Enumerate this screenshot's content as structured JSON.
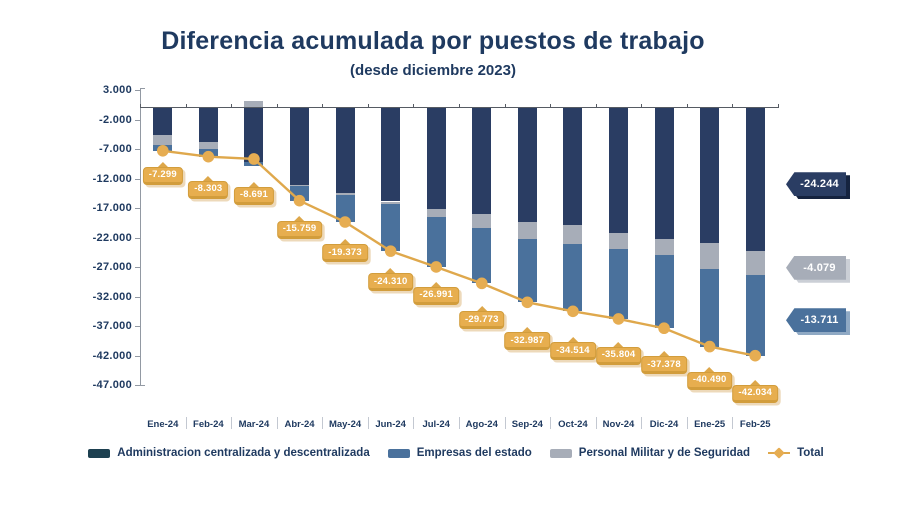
{
  "title": "Diferencia acumulada por puestos de trabajo",
  "subtitle": "(desde diciembre 2023)",
  "colors": {
    "title": "#1f3a60",
    "text": "#1f3a60",
    "axis": "#9299a3",
    "zero_line": "#565b63",
    "admin": "#2a3d63",
    "empresas": "#4a719c",
    "militar": "#a7adb8",
    "gold_line": "#dfa84c",
    "gold_fill": "#e6ad52",
    "gold_border": "#d29d3c",
    "legend_admin_swatch": "#1d4050",
    "callout_shadow_admin": "#15233f",
    "callout_shadow_militar": "#cbcfd6",
    "callout_shadow_empresas": "#8fa9c4"
  },
  "y_axis": {
    "tick_labels": [
      "3.000",
      "-2.000",
      "-7.000",
      "-12.000",
      "-17.000",
      "-22.000",
      "-27.000",
      "-32.000",
      "-37.000",
      "-42.000",
      "-47.000"
    ],
    "max": 3000,
    "min": -47000
  },
  "chart_data": {
    "type": "bar",
    "stacked": true,
    "line_overlay": "Total",
    "categories": [
      "Ene-24",
      "Feb-24",
      "Mar-24",
      "Abr-24",
      "May-24",
      "Jun-24",
      "Jul-24",
      "Ago-24",
      "Sep-24",
      "Oct-24",
      "Nov-24",
      "Dic-24",
      "Ene-25",
      "Feb-25"
    ],
    "series": [
      {
        "key": "admin",
        "name": "Administracion centralizada y descentralizada",
        "values": [
          -4600,
          -5800,
          -9200,
          -13100,
          -14400,
          -15900,
          -17200,
          -18000,
          -19300,
          -19900,
          -21300,
          -22300,
          -22900,
          -24244
        ]
      },
      {
        "key": "militar",
        "name": "Personal Militar y de Seguridad",
        "values": [
          -1700,
          -1200,
          1200,
          -200,
          -400,
          -500,
          -1300,
          -2400,
          -3000,
          -3200,
          -2700,
          -2700,
          -4500,
          -4079
        ]
      },
      {
        "key": "empresas",
        "name": "Empresas del estado",
        "values": [
          -999,
          -1303,
          -691,
          -2459,
          -4573,
          -7910,
          -8491,
          -9373,
          -10687,
          -11414,
          -11804,
          -12378,
          -13090,
          -13711
        ]
      }
    ],
    "line": {
      "name": "Total",
      "values": [
        -7299,
        -8303,
        -8691,
        -15759,
        -19373,
        -24310,
        -26991,
        -29773,
        -32987,
        -34514,
        -35804,
        -37378,
        -40490,
        -42034
      ],
      "labels": [
        "-7.299",
        "-8.303",
        "-8.691",
        "-15.759",
        "-19.373",
        "-24.310",
        "-26.991",
        "-29.773",
        "-32.987",
        "-34.514",
        "-35.804",
        "-37.378",
        "-40.490",
        "-42.034"
      ]
    },
    "right_callouts": [
      {
        "label": "-24.244",
        "series": "admin"
      },
      {
        "label": "-4.079",
        "series": "militar"
      },
      {
        "label": "-13.711",
        "series": "empresas"
      }
    ]
  },
  "legend": [
    {
      "label": "Administracion centralizada y descentralizada",
      "marker": "swatch",
      "series": "admin"
    },
    {
      "label": "Empresas del estado",
      "marker": "swatch",
      "series": "empresas"
    },
    {
      "label": "Personal Militar y de Seguridad",
      "marker": "swatch",
      "series": "militar"
    },
    {
      "label": "Total",
      "marker": "line",
      "series": "total"
    }
  ]
}
